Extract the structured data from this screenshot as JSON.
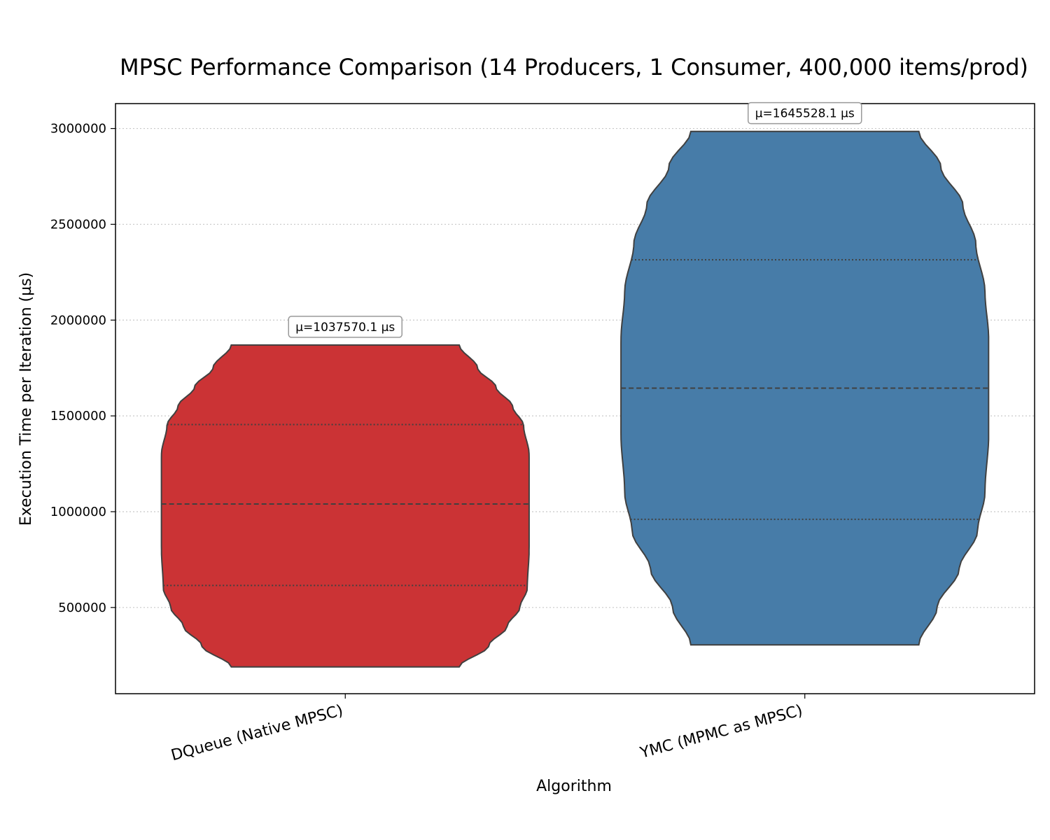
{
  "chart_data": {
    "type": "violin",
    "title": "MPSC Performance Comparison (14 Producers, 1 Consumer, 400,000 items/prod)",
    "xlabel": "Algorithm",
    "ylabel": "Execution Time per Iteration (µs)",
    "ylim": [
      50000,
      3130000
    ],
    "yticks": [
      500000,
      1000000,
      1500000,
      2000000,
      2500000,
      3000000
    ],
    "ytick_labels": [
      "500000",
      "1000000",
      "1500000",
      "2000000",
      "2500000",
      "3000000"
    ],
    "grid": "y-dotted",
    "categories": [
      "DQueue (Native MPSC)",
      "YMC (MPMC as MPSC)"
    ],
    "series": [
      {
        "category": "DQueue (Native MPSC)",
        "color": "#cb3335",
        "min": 190000,
        "max": 1870000,
        "q1": 615000,
        "median": 1040000,
        "q3": 1455000,
        "mean_label": "µ=1037570.1 µs",
        "mean": 1037570.1,
        "density": [
          [
            190000,
            0.62
          ],
          [
            300000,
            0.78
          ],
          [
            400000,
            0.88
          ],
          [
            500000,
            0.95
          ],
          [
            600000,
            0.99
          ],
          [
            800000,
            1.0
          ],
          [
            1040000,
            1.0
          ],
          [
            1300000,
            1.0
          ],
          [
            1450000,
            0.97
          ],
          [
            1550000,
            0.91
          ],
          [
            1650000,
            0.82
          ],
          [
            1750000,
            0.72
          ],
          [
            1870000,
            0.62
          ]
        ]
      },
      {
        "category": "YMC (MPMC as MPSC)",
        "color": "#477ca8",
        "min": 305000,
        "max": 2985000,
        "q1": 960000,
        "median": 1645000,
        "q3": 2315000,
        "mean_label": "µ=1645528.1 µs",
        "mean": 1645528.1,
        "density": [
          [
            305000,
            0.62
          ],
          [
            500000,
            0.72
          ],
          [
            700000,
            0.84
          ],
          [
            900000,
            0.94
          ],
          [
            1100000,
            0.98
          ],
          [
            1400000,
            1.0
          ],
          [
            1650000,
            1.0
          ],
          [
            1900000,
            1.0
          ],
          [
            2150000,
            0.98
          ],
          [
            2400000,
            0.93
          ],
          [
            2600000,
            0.86
          ],
          [
            2800000,
            0.74
          ],
          [
            2985000,
            0.62
          ]
        ]
      }
    ]
  }
}
